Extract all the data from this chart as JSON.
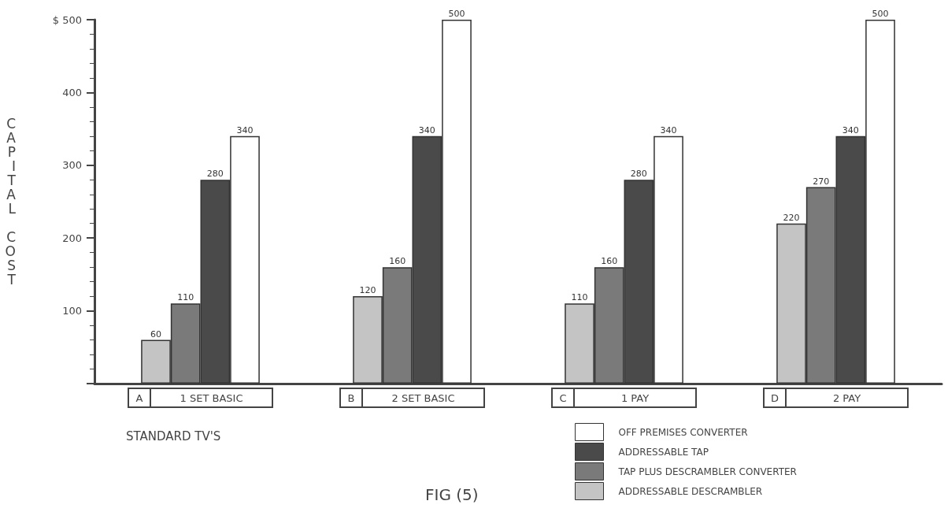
{
  "chart_data": {
    "type": "bar",
    "ylabel": "CAPITAL COST",
    "categories": [
      "A 1 SET BASIC",
      "B 2 SET BASIC",
      "C 1 PAY",
      "D 2 PAY"
    ],
    "series": [
      {
        "name": "ADDRESSABLE DESCRAMBLER",
        "color": "#c4c4c4",
        "values": [
          60,
          120,
          110,
          220
        ]
      },
      {
        "name": "TAP PLUS DESCRAMBLER CONVERTER",
        "color": "#7a7a7a",
        "values": [
          110,
          160,
          160,
          270
        ]
      },
      {
        "name": "ADDRESSABLE TAP",
        "color": "#4a4a4a",
        "values": [
          280,
          340,
          280,
          340
        ]
      },
      {
        "name": "OFF PREMISES CONVERTER",
        "color": "#ffffff",
        "values": [
          340,
          500,
          340,
          500
        ]
      }
    ],
    "data_labels": true,
    "ylim": [
      0,
      500
    ],
    "yticks": [
      100,
      200,
      300,
      400,
      {
        "value": 500,
        "label": "$ 500"
      }
    ],
    "grid": false,
    "legend": "bottom right",
    "annotations": [
      "STANDARD TV'S",
      "FIG (5)"
    ]
  }
}
